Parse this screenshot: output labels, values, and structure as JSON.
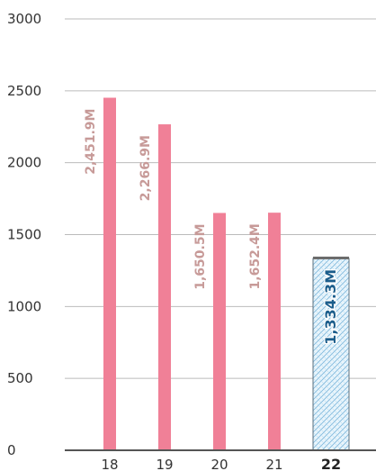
{
  "chart_data": {
    "type": "bar",
    "categories": [
      "18",
      "19",
      "20",
      "21",
      "22"
    ],
    "values": [
      2451.9,
      2266.9,
      1650.5,
      1652.4,
      1334.3
    ],
    "data_labels": [
      "2,451.9M",
      "2,266.9M",
      "1,650.5M",
      "1,652.4M",
      "1,334.3M"
    ],
    "highlight_index": 4,
    "y_ticks": [
      "0",
      "500",
      "1000",
      "1500",
      "2000",
      "2500",
      "3000"
    ],
    "ylim": [
      0,
      3000
    ],
    "grid": true,
    "colors": {
      "bar": "#f08097",
      "highlight_bar": "#9fcde8",
      "highlight_label": "#1c5e8c",
      "label": "#c79a98",
      "grid": "#bbbbbb",
      "axis": "#555555"
    }
  }
}
